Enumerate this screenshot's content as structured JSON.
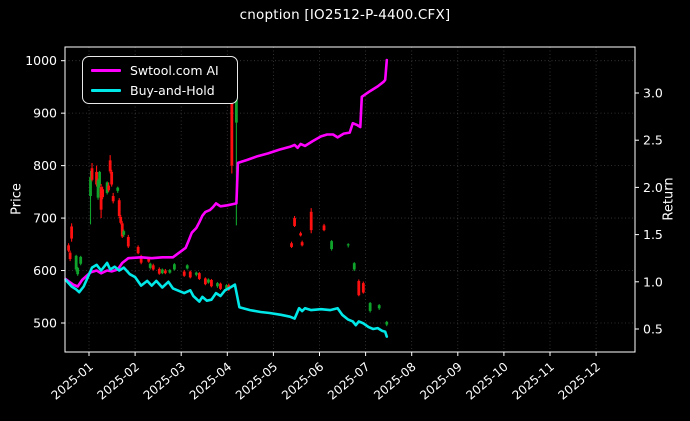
{
  "header": {
    "title": "cnoption [IO2512-P-4400.CFX]"
  },
  "chart_data": {
    "type": "candlestick+line",
    "title": "cnoption [IO2512-P-4400.CFX]",
    "grid": true,
    "colors": {
      "background": "#000000",
      "text": "#ffffff",
      "grid": "#3c3c3c",
      "spine": "#ffffff",
      "candle_up": "#0fa32b",
      "candle_down": "#ff1010",
      "ai_line": "#ff00ff",
      "bh_line": "#00e8e8"
    },
    "left_axis": {
      "label": "Price",
      "ticks": [
        500,
        600,
        700,
        800,
        900,
        1000
      ]
    },
    "right_axis": {
      "label": "Return",
      "ticks": [
        0.5,
        1.0,
        1.5,
        2.0,
        2.5,
        3.0
      ]
    },
    "x_axis": {
      "tick_labels": [
        "2025-01",
        "2025-02",
        "2025-03",
        "2025-04",
        "2025-05",
        "2025-06",
        "2025-07",
        "2025-08",
        "2025-09",
        "2025-10",
        "2025-11",
        "2025-12"
      ]
    },
    "legend": {
      "position": "upper-left",
      "entries": [
        {
          "label": "Swtool.com AI",
          "color": "#ff00ff"
        },
        {
          "label": "Buy-and-Hold",
          "color": "#00e8e8"
        }
      ]
    },
    "candles": [
      [
        "2024-12-18",
        648,
        652,
        635,
        638
      ],
      [
        "2024-12-19",
        634,
        638,
        618,
        622
      ],
      [
        "2024-12-20",
        684,
        690,
        655,
        661
      ],
      [
        "2024-12-23",
        602,
        630,
        598,
        628
      ],
      [
        "2024-12-24",
        593,
        607,
        590,
        605
      ],
      [
        "2024-12-26",
        613,
        628,
        610,
        626
      ],
      [
        "2025-01-02",
        742,
        790,
        688,
        778
      ],
      [
        "2025-01-03",
        795,
        805,
        770,
        773
      ],
      [
        "2025-01-06",
        788,
        800,
        760,
        764
      ],
      [
        "2025-01-07",
        739,
        775,
        735,
        772
      ],
      [
        "2025-01-08",
        762,
        790,
        758,
        788
      ],
      [
        "2025-01-09",
        759,
        765,
        700,
        716
      ],
      [
        "2025-01-10",
        755,
        760,
        736,
        740
      ],
      [
        "2025-01-13",
        748,
        770,
        745,
        768
      ],
      [
        "2025-01-14",
        762,
        768,
        750,
        753
      ],
      [
        "2025-01-15",
        810,
        820,
        785,
        789
      ],
      [
        "2025-01-16",
        788,
        792,
        760,
        764
      ],
      [
        "2025-01-17",
        742,
        748,
        728,
        732
      ],
      [
        "2025-01-20",
        752,
        760,
        748,
        758
      ],
      [
        "2025-01-21",
        734,
        738,
        700,
        704
      ],
      [
        "2025-01-22",
        702,
        706,
        688,
        691
      ],
      [
        "2025-01-23",
        690,
        694,
        662,
        665
      ],
      [
        "2025-01-24",
        668,
        678,
        664,
        675
      ],
      [
        "2025-01-27",
        664,
        668,
        643,
        646
      ],
      [
        "2025-02-03",
        645,
        648,
        631,
        633
      ],
      [
        "2025-02-05",
        626,
        630,
        612,
        615
      ],
      [
        "2025-02-10",
        622,
        626,
        615,
        617
      ],
      [
        "2025-02-11",
        605,
        615,
        602,
        613
      ],
      [
        "2025-02-13",
        610,
        613,
        600,
        602
      ],
      [
        "2025-02-17",
        603,
        606,
        592,
        594
      ],
      [
        "2025-02-19",
        595,
        604,
        593,
        602
      ],
      [
        "2025-02-21",
        600,
        603,
        593,
        595
      ],
      [
        "2025-02-24",
        596,
        603,
        594,
        601
      ],
      [
        "2025-02-27",
        602,
        614,
        600,
        612
      ],
      [
        "2025-03-03",
        598,
        601,
        588,
        590
      ],
      [
        "2025-03-05",
        604,
        612,
        602,
        610
      ],
      [
        "2025-03-07",
        598,
        600,
        585,
        587
      ],
      [
        "2025-03-11",
        592,
        598,
        589,
        596
      ],
      [
        "2025-03-13",
        595,
        597,
        582,
        584
      ],
      [
        "2025-03-17",
        585,
        587,
        572,
        574
      ],
      [
        "2025-03-19",
        577,
        585,
        575,
        583
      ],
      [
        "2025-03-21",
        582,
        584,
        568,
        570
      ],
      [
        "2025-03-25",
        570,
        578,
        567,
        576
      ],
      [
        "2025-03-27",
        575,
        577,
        563,
        565
      ],
      [
        "2025-03-31",
        566,
        574,
        563,
        572
      ],
      [
        "2025-04-02",
        572,
        575,
        561,
        563
      ],
      [
        "2025-04-04",
        990,
        1000,
        785,
        800
      ],
      [
        "2025-04-07",
        882,
        975,
        686,
        968
      ],
      [
        "2025-05-13",
        652,
        655,
        643,
        645
      ],
      [
        "2025-05-15",
        700,
        704,
        683,
        685
      ],
      [
        "2025-05-19",
        671,
        674,
        665,
        667
      ],
      [
        "2025-05-20",
        654,
        657,
        646,
        648
      ],
      [
        "2025-05-26",
        712,
        719,
        671,
        677
      ],
      [
        "2025-06-04",
        686,
        689,
        675,
        677
      ],
      [
        "2025-06-09",
        641,
        658,
        638,
        656
      ],
      [
        "2025-06-20",
        648,
        652,
        644,
        650
      ],
      [
        "2025-06-24",
        602,
        616,
        599,
        614
      ],
      [
        "2025-06-27",
        580,
        583,
        551,
        553
      ],
      [
        "2025-06-30",
        576,
        579,
        556,
        558
      ],
      [
        "2025-07-04",
        523,
        540,
        520,
        538
      ],
      [
        "2025-07-10",
        528,
        536,
        525,
        534
      ],
      [
        "2025-07-15",
        497,
        504,
        494,
        502
      ]
    ],
    "series": [
      {
        "name": "Swtool.com AI",
        "axis": "return",
        "color": "#ff00ff",
        "points": [
          [
            "2024-12-16",
            1.03
          ],
          [
            "2024-12-21",
            0.97
          ],
          [
            "2024-12-24",
            0.95
          ],
          [
            "2024-12-27",
            1.02
          ],
          [
            "2025-01-02",
            1.1
          ],
          [
            "2025-01-06",
            1.12
          ],
          [
            "2025-01-09",
            1.09
          ],
          [
            "2025-01-13",
            1.12
          ],
          [
            "2025-01-16",
            1.11
          ],
          [
            "2025-01-20",
            1.13
          ],
          [
            "2025-01-23",
            1.2
          ],
          [
            "2025-01-27",
            1.25
          ],
          [
            "2025-02-05",
            1.26
          ],
          [
            "2025-02-12",
            1.25
          ],
          [
            "2025-02-19",
            1.26
          ],
          [
            "2025-02-26",
            1.26
          ],
          [
            "2025-03-04",
            1.36
          ],
          [
            "2025-03-06",
            1.44
          ],
          [
            "2025-03-08",
            1.52
          ],
          [
            "2025-03-11",
            1.57
          ],
          [
            "2025-03-13",
            1.63
          ],
          [
            "2025-03-15",
            1.7
          ],
          [
            "2025-03-17",
            1.74
          ],
          [
            "2025-03-20",
            1.76
          ],
          [
            "2025-03-22",
            1.79
          ],
          [
            "2025-03-24",
            1.83
          ],
          [
            "2025-03-27",
            1.8
          ],
          [
            "2025-04-01",
            1.81
          ],
          [
            "2025-04-04",
            1.82
          ],
          [
            "2025-04-07",
            1.83
          ],
          [
            "2025-04-08",
            2.26
          ],
          [
            "2025-04-14",
            2.29
          ],
          [
            "2025-04-21",
            2.33
          ],
          [
            "2025-04-28",
            2.36
          ],
          [
            "2025-05-05",
            2.4
          ],
          [
            "2025-05-12",
            2.43
          ],
          [
            "2025-05-15",
            2.45
          ],
          [
            "2025-05-17",
            2.42
          ],
          [
            "2025-05-19",
            2.46
          ],
          [
            "2025-05-22",
            2.44
          ],
          [
            "2025-05-27",
            2.49
          ],
          [
            "2025-06-02",
            2.54
          ],
          [
            "2025-06-06",
            2.56
          ],
          [
            "2025-06-10",
            2.56
          ],
          [
            "2025-06-13",
            2.53
          ],
          [
            "2025-06-17",
            2.57
          ],
          [
            "2025-06-21",
            2.58
          ],
          [
            "2025-06-23",
            2.68
          ],
          [
            "2025-06-26",
            2.66
          ],
          [
            "2025-06-28",
            2.64
          ],
          [
            "2025-06-29",
            2.96
          ],
          [
            "2025-07-04",
            3.02
          ],
          [
            "2025-07-09",
            3.07
          ],
          [
            "2025-07-13",
            3.12
          ],
          [
            "2025-07-14",
            3.14
          ],
          [
            "2025-07-15",
            3.35
          ]
        ]
      },
      {
        "name": "Buy-and-Hold",
        "axis": "return",
        "color": "#00e8e8",
        "points": [
          [
            "2024-12-16",
            1.02
          ],
          [
            "2024-12-20",
            0.95
          ],
          [
            "2024-12-23",
            0.92
          ],
          [
            "2024-12-25",
            0.89
          ],
          [
            "2024-12-28",
            0.95
          ],
          [
            "2025-01-03",
            1.15
          ],
          [
            "2025-01-06",
            1.18
          ],
          [
            "2025-01-09",
            1.12
          ],
          [
            "2025-01-13",
            1.2
          ],
          [
            "2025-01-15",
            1.13
          ],
          [
            "2025-01-18",
            1.16
          ],
          [
            "2025-01-21",
            1.12
          ],
          [
            "2025-01-24",
            1.15
          ],
          [
            "2025-01-28",
            1.08
          ],
          [
            "2025-02-01",
            1.05
          ],
          [
            "2025-02-05",
            0.96
          ],
          [
            "2025-02-09",
            1.01
          ],
          [
            "2025-02-12",
            0.96
          ],
          [
            "2025-02-15",
            1.01
          ],
          [
            "2025-02-19",
            0.94
          ],
          [
            "2025-02-23",
            1.0
          ],
          [
            "2025-02-26",
            0.93
          ],
          [
            "2025-03-03",
            0.88
          ],
          [
            "2025-03-07",
            0.91
          ],
          [
            "2025-03-09",
            0.85
          ],
          [
            "2025-03-13",
            0.79
          ],
          [
            "2025-03-15",
            0.84
          ],
          [
            "2025-03-18",
            0.8
          ],
          [
            "2025-03-21",
            0.81
          ],
          [
            "2025-03-24",
            0.88
          ],
          [
            "2025-03-27",
            0.85
          ],
          [
            "2025-03-30",
            0.91
          ],
          [
            "2025-04-03",
            0.94
          ],
          [
            "2025-04-06",
            0.97
          ],
          [
            "2025-04-08",
            0.81
          ],
          [
            "2025-04-09",
            0.73
          ],
          [
            "2025-04-16",
            0.7
          ],
          [
            "2025-04-23",
            0.68
          ],
          [
            "2025-04-29",
            0.67
          ],
          [
            "2025-05-06",
            0.65
          ],
          [
            "2025-05-12",
            0.63
          ],
          [
            "2025-05-15",
            0.61
          ],
          [
            "2025-05-18",
            0.72
          ],
          [
            "2025-05-20",
            0.69
          ],
          [
            "2025-05-22",
            0.72
          ],
          [
            "2025-05-26",
            0.7
          ],
          [
            "2025-06-02",
            0.71
          ],
          [
            "2025-06-08",
            0.7
          ],
          [
            "2025-06-13",
            0.72
          ],
          [
            "2025-06-16",
            0.65
          ],
          [
            "2025-06-20",
            0.6
          ],
          [
            "2025-06-23",
            0.58
          ],
          [
            "2025-06-25",
            0.54
          ],
          [
            "2025-06-27",
            0.58
          ],
          [
            "2025-06-30",
            0.56
          ],
          [
            "2025-07-03",
            0.52
          ],
          [
            "2025-07-06",
            0.5
          ],
          [
            "2025-07-09",
            0.51
          ],
          [
            "2025-07-12",
            0.48
          ],
          [
            "2025-07-14",
            0.47
          ],
          [
            "2025-07-15",
            0.42
          ]
        ]
      }
    ]
  }
}
